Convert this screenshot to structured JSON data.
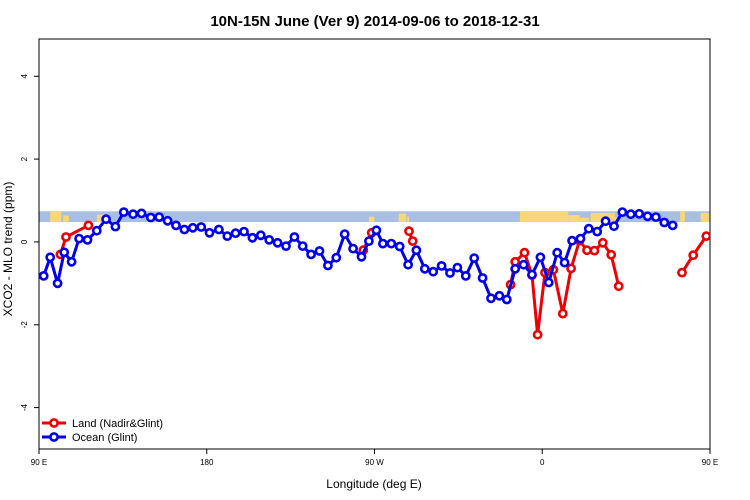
{
  "chart_data": {
    "type": "line",
    "title": "10N-15N June (Ver 9)   2014-09-06 to 2018-12-31",
    "xlabel": "Longitude (deg E)",
    "ylabel": "XCO2 - MLO trend (ppm)",
    "xlim": [
      90,
      450
    ],
    "ylim": [
      -5,
      4.9
    ],
    "x_ticks": [
      {
        "value": 90,
        "label": "90 E"
      },
      {
        "value": 180,
        "label": "180"
      },
      {
        "value": 270,
        "label": "90 W"
      },
      {
        "value": 360,
        "label": "0"
      },
      {
        "value": 450,
        "label": "90 E"
      },
      {
        "value": 540,
        "label": "180"
      }
    ],
    "y_ticks": [
      {
        "value": -4,
        "label": "-4"
      },
      {
        "value": -2,
        "label": "-2"
      },
      {
        "value": 0,
        "label": "0"
      },
      {
        "value": 2,
        "label": "2"
      },
      {
        "value": 4,
        "label": "4"
      }
    ],
    "land_strip": {
      "y0": 0.48,
      "y1": 0.74,
      "ocean_color": "#a8bfe3",
      "land_color": "#f7d77a"
    },
    "legend": {
      "position": "bottom-left"
    },
    "series": [
      {
        "name": "Land (Nadir&Glint)",
        "color": "#ee0000",
        "segments": [
          [
            [
              101.5,
              -0.3
            ],
            [
              104.5,
              0.12
            ],
            [
              116.5,
              0.4
            ]
          ],
          [
            [
              264,
              -0.2
            ],
            [
              268.5,
              0.22
            ]
          ],
          [
            [
              288.5,
              0.26
            ],
            [
              290.5,
              0.02
            ]
          ],
          [
            [
              343,
              -1.03
            ],
            [
              345.5,
              -0.48
            ],
            [
              350.5,
              -0.26
            ],
            [
              354.5,
              -0.8
            ],
            [
              357.5,
              -2.24
            ],
            [
              361.5,
              -0.74
            ],
            [
              366,
              -0.67
            ],
            [
              371,
              -1.73
            ],
            [
              375.5,
              -0.64
            ],
            [
              380,
              0.03
            ],
            [
              384,
              -0.2
            ],
            [
              388,
              -0.21
            ],
            [
              392.5,
              -0.02
            ],
            [
              397,
              -0.31
            ],
            [
              401,
              -1.07
            ]
          ],
          [
            [
              435,
              -0.74
            ],
            [
              441,
              -0.32
            ],
            [
              448,
              0.14
            ]
          ],
          [
            [
              461,
              0.42
            ],
            [
              466,
              0.3
            ]
          ]
        ]
      },
      {
        "name": "Ocean (Glint)",
        "color": "#0000ee",
        "segments": [
          [
            [
              92.5,
              -0.82
            ],
            [
              96,
              -0.37
            ],
            [
              100,
              -1.0
            ],
            [
              103.5,
              -0.25
            ],
            [
              107.5,
              -0.48
            ],
            [
              111.5,
              0.08
            ],
            [
              116,
              0.05
            ],
            [
              121,
              0.27
            ],
            [
              126,
              0.55
            ],
            [
              131,
              0.37
            ],
            [
              135.5,
              0.72
            ],
            [
              140.5,
              0.67
            ],
            [
              145,
              0.69
            ],
            [
              150,
              0.59
            ],
            [
              154.5,
              0.6
            ],
            [
              159,
              0.51
            ],
            [
              163.5,
              0.4
            ],
            [
              168,
              0.3
            ],
            [
              172.5,
              0.34
            ],
            [
              177,
              0.36
            ],
            [
              181.5,
              0.22
            ],
            [
              186.5,
              0.3
            ],
            [
              191,
              0.14
            ],
            [
              195.5,
              0.21
            ],
            [
              200,
              0.25
            ],
            [
              204.5,
              0.1
            ],
            [
              209,
              0.16
            ],
            [
              213.5,
              0.05
            ],
            [
              218,
              -0.02
            ],
            [
              222.5,
              -0.1
            ],
            [
              227,
              0.12
            ],
            [
              231.5,
              -0.1
            ],
            [
              236,
              -0.3
            ],
            [
              240.5,
              -0.22
            ],
            [
              245,
              -0.57
            ],
            [
              249.5,
              -0.38
            ],
            [
              254,
              0.19
            ],
            [
              258.5,
              -0.16
            ],
            [
              263,
              -0.36
            ],
            [
              267,
              0.02
            ],
            [
              271,
              0.28
            ],
            [
              274.5,
              -0.04
            ],
            [
              279,
              -0.04
            ],
            [
              283.5,
              -0.11
            ],
            [
              288,
              -0.55
            ],
            [
              292.5,
              -0.2
            ],
            [
              297,
              -0.65
            ],
            [
              301.5,
              -0.72
            ],
            [
              306,
              -0.58
            ],
            [
              310.5,
              -0.75
            ]
          ],
          [
            [
              314.5,
              -0.62
            ],
            [
              319,
              -0.82
            ],
            [
              323.5,
              -0.39
            ],
            [
              328,
              -0.87
            ],
            [
              332.5,
              -1.36
            ],
            [
              337,
              -1.3
            ],
            [
              341,
              -1.39
            ],
            [
              345.5,
              -0.65
            ],
            [
              350,
              -0.55
            ],
            [
              354.5,
              -0.79
            ],
            [
              359,
              -0.37
            ],
            [
              363.5,
              -0.98
            ],
            [
              368,
              -0.26
            ],
            [
              372,
              -0.5
            ],
            [
              376,
              0.03
            ],
            [
              380.5,
              0.08
            ],
            [
              385,
              0.32
            ],
            [
              389.5,
              0.25
            ],
            [
              394,
              0.5
            ],
            [
              398.5,
              0.38
            ],
            [
              403,
              0.72
            ],
            [
              407.5,
              0.67
            ],
            [
              412,
              0.68
            ],
            [
              416.5,
              0.62
            ],
            [
              421,
              0.6
            ],
            [
              425.5,
              0.47
            ],
            [
              430,
              0.4
            ]
          ]
        ]
      }
    ]
  }
}
